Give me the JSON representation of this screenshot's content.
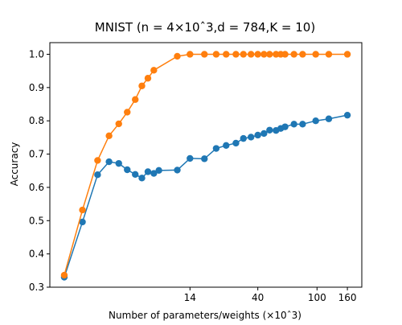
{
  "chart_data": {
    "type": "line",
    "title": "MNIST (n = 4×10ˆ3,d = 784,K = 10)",
    "xlabel": "Number of parameters/weights (×10ˆ3)",
    "ylabel": "Accuracy",
    "x_scale": "log",
    "xlim": [
      1.6,
      200
    ],
    "ylim": [
      0.3,
      1.035
    ],
    "x_ticks": [
      14,
      40,
      100,
      160
    ],
    "x_tick_labels": [
      "14",
      "40",
      "100",
      "160"
    ],
    "y_ticks": [
      0.3,
      0.4,
      0.5,
      0.6,
      0.7,
      0.8,
      0.9,
      1.0
    ],
    "y_tick_labels": [
      "0.3",
      "0.4",
      "0.5",
      "0.6",
      "0.7",
      "0.8",
      "0.9",
      "1.0"
    ],
    "grid": false,
    "series": [
      {
        "color": "#1f77b4",
        "x": [
          2.0,
          2.65,
          3.35,
          4.0,
          4.65,
          5.3,
          6.0,
          6.65,
          7.3,
          8.0,
          8.65,
          11.5,
          14.0,
          17.5,
          21.0,
          24.5,
          28.5,
          32.0,
          36.0,
          40.0,
          44.0,
          48.0,
          53.0,
          57.0,
          61.0,
          70.0,
          80.0,
          98.0,
          120.0,
          160.0
        ],
        "values": [
          0.33,
          0.496,
          0.638,
          0.677,
          0.672,
          0.653,
          0.639,
          0.628,
          0.647,
          0.642,
          0.651,
          0.652,
          0.687,
          0.686,
          0.717,
          0.726,
          0.733,
          0.747,
          0.751,
          0.757,
          0.762,
          0.772,
          0.771,
          0.777,
          0.782,
          0.79,
          0.79,
          0.8,
          0.806,
          0.817
        ]
      },
      {
        "color": "#ff7f0e",
        "x": [
          2.0,
          2.65,
          3.35,
          4.0,
          4.65,
          5.3,
          6.0,
          6.65,
          7.3,
          8.0,
          11.5,
          14.0,
          17.5,
          21.0,
          24.5,
          28.5,
          32.0,
          36.0,
          40.0,
          44.0,
          48.0,
          53.0,
          57.0,
          61.0,
          70.0,
          80.0,
          98.0,
          120.0,
          160.0
        ],
        "values": [
          0.336,
          0.532,
          0.681,
          0.755,
          0.791,
          0.826,
          0.864,
          0.905,
          0.928,
          0.952,
          0.994,
          1.0,
          1.0,
          1.0,
          1.0,
          1.0,
          1.0,
          1.0,
          1.0,
          1.0,
          1.0,
          1.0,
          1.0,
          1.0,
          1.0,
          1.0,
          1.0,
          1.0,
          1.0
        ]
      }
    ]
  }
}
